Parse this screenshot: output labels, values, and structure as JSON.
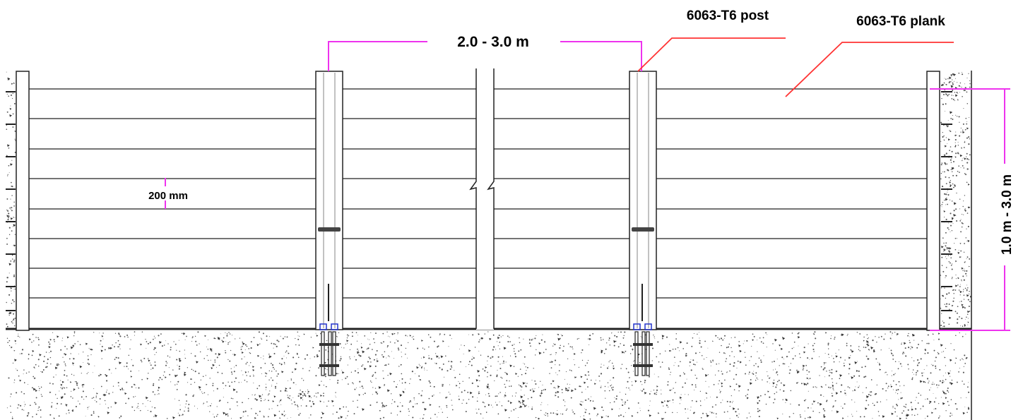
{
  "labels": {
    "span_width": "2.0 - 3.0 m",
    "post_material": "6063-T6 post",
    "plank_material": "6063-T6 plank",
    "plank_height": "200 mm",
    "wall_height": "1.0 m - 3.0 m"
  },
  "colors": {
    "dimension_line": "#ee33ee",
    "leader_line": "#ff3333",
    "outline": "#222222",
    "anchor_plate": "#2233cc"
  }
}
